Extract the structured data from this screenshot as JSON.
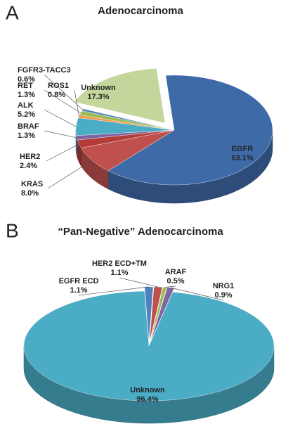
{
  "chart_data": [
    {
      "type": "pie",
      "panel": "A",
      "title": "Adenocarcinoma",
      "categories": [
        "EGFR",
        "KRAS",
        "HER2",
        "BRAF",
        "ALK",
        "ROS1",
        "RET",
        "FGFR3-TACC3",
        "Unknown"
      ],
      "values": [
        63.1,
        8.0,
        2.4,
        1.3,
        5.2,
        0.8,
        1.3,
        0.6,
        17.3
      ],
      "value_labels": [
        "63.1%",
        "8.0%",
        "2.4%",
        "1.3%",
        "5.2%",
        "0.8%",
        "1.3%",
        "0.6%",
        "17.3%"
      ],
      "colors": [
        "#3e6aa8",
        "#c0504d",
        "#b33c39",
        "#8064a2",
        "#4bacc6",
        "#f79646",
        "#9bbb59",
        "#4f81bd",
        "#c3d69b"
      ]
    },
    {
      "type": "pie",
      "panel": "B",
      "title": "“Pan-Negative” Adenocarcinoma",
      "categories": [
        "EGFR ECD",
        "HER2 ECD+TM",
        "ARAF",
        "NRG1",
        "Unknown"
      ],
      "values": [
        1.1,
        1.1,
        0.5,
        0.9,
        96.4
      ],
      "value_labels": [
        "1.1%",
        "1.1%",
        "0.5%",
        "0.9%",
        "96.4%"
      ],
      "colors": [
        "#4f81bd",
        "#c0504d",
        "#9bbb59",
        "#8064a2",
        "#4bacc6"
      ]
    }
  ]
}
